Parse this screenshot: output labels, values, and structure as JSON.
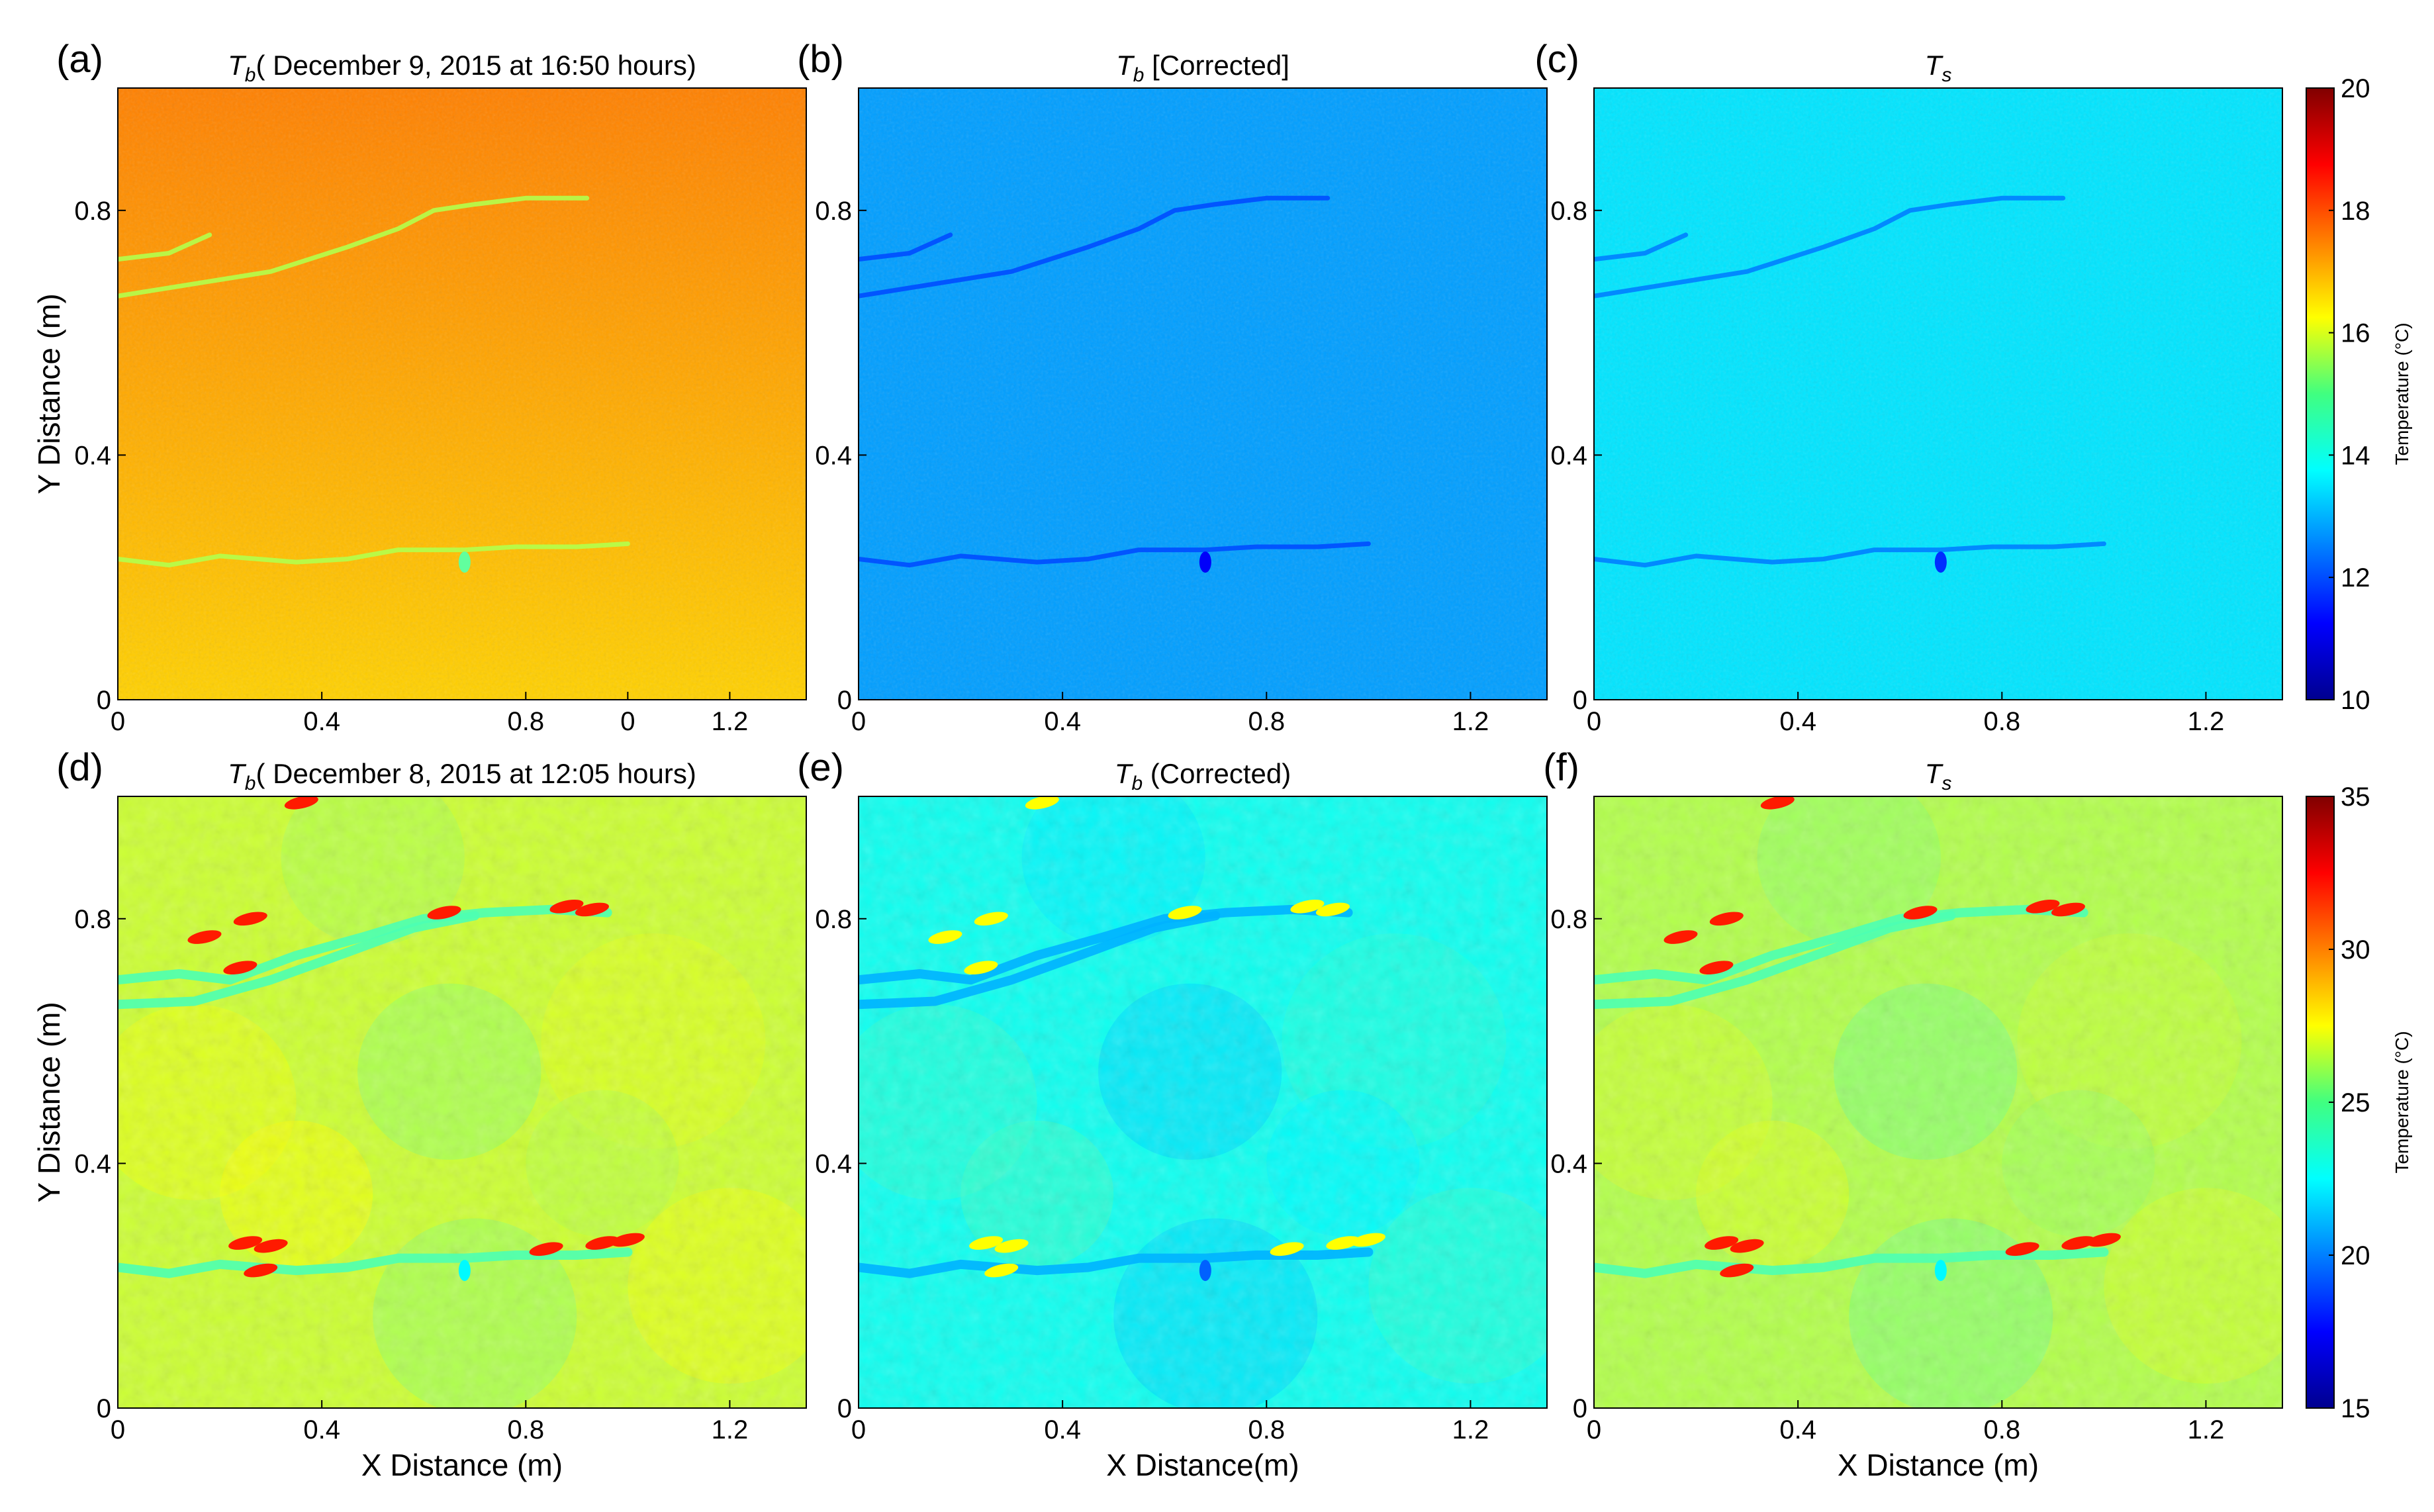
{
  "figure": {
    "panels": [
      {
        "id": "a",
        "label": "(a)",
        "title_main": "T",
        "title_sub": "b",
        "title_rest": "( December 9, 2015 at 16:50 hours)",
        "field": "Tb_dec9",
        "row": 0,
        "col": 0,
        "show_ylabel": true,
        "show_xlabel": false
      },
      {
        "id": "b",
        "label": "(b)",
        "title_main": "T",
        "title_sub": "b",
        "title_rest": " [Corrected]",
        "field": "Tbc_dec9",
        "row": 0,
        "col": 1,
        "show_ylabel": false,
        "show_xlabel": false
      },
      {
        "id": "c",
        "label": "(c)",
        "title_main": "T",
        "title_sub": "s",
        "title_rest": "",
        "field": "Ts_dec9",
        "row": 0,
        "col": 2,
        "show_ylabel": false,
        "show_xlabel": false
      },
      {
        "id": "d",
        "label": "(d)",
        "title_main": "T",
        "title_sub": "b",
        "title_rest": "( December 8, 2015 at 12:05 hours)",
        "field": "Tb_dec8",
        "row": 1,
        "col": 0,
        "show_ylabel": true,
        "show_xlabel": true
      },
      {
        "id": "e",
        "label": "(e)",
        "title_main": "T",
        "title_sub": "b",
        "title_rest": " (Corrected)",
        "field": "Tbc_dec8",
        "row": 1,
        "col": 1,
        "show_ylabel": false,
        "show_xlabel": true
      },
      {
        "id": "f",
        "label": "(f)",
        "title_main": "T",
        "title_sub": "s",
        "title_rest": "",
        "field": "Ts_dec8",
        "row": 1,
        "col": 2,
        "show_ylabel": false,
        "show_xlabel": true
      }
    ],
    "x_ticks_row1_panel_a": [
      "0",
      "0.4",
      "0.8",
      "0",
      "1.2"
    ],
    "x_ticks": [
      "0",
      "0.4",
      "0.8",
      "1.2"
    ],
    "y_ticks": [
      "0",
      "0.4",
      "0.8"
    ],
    "x_axis_labels": {
      "d": "X Distance (m)",
      "e": "X Distance(m)",
      "f": "X Distance (m)"
    },
    "y_axis_label": "Y Distance (m)",
    "colorbars": [
      {
        "row": 0,
        "min": 10,
        "max": 20,
        "ticks": [
          "10",
          "12",
          "14",
          "16",
          "18",
          "20"
        ],
        "label": "Temperature (°C)"
      },
      {
        "row": 1,
        "min": 15,
        "max": 35,
        "ticks": [
          "15",
          "20",
          "25",
          "30",
          "35"
        ],
        "label": "Temperature (°C)"
      }
    ],
    "colormap": "jet"
  },
  "chart_data": [
    {
      "type": "heatmap",
      "panel": "(a)",
      "title": "Tb( December 9, 2015 at 16:50 hours)",
      "xlim": [
        0,
        1.35
      ],
      "ylim": [
        0,
        1.0
      ],
      "ylabel": "Y Distance (m)",
      "color_range": [
        10,
        20
      ],
      "approx_values": {
        "top": 17.5,
        "bottom": 16.7,
        "crack_features": 15.5
      }
    },
    {
      "type": "heatmap",
      "panel": "(b)",
      "title": "Tb [Corrected]",
      "xlim": [
        0,
        1.35
      ],
      "ylim": [
        0,
        1.0
      ],
      "color_range": [
        10,
        20
      ],
      "approx_values": {
        "background": 12.8,
        "crack_features": 12.0
      }
    },
    {
      "type": "heatmap",
      "panel": "(c)",
      "title": "Ts",
      "xlim": [
        0,
        1.35
      ],
      "ylim": [
        0,
        1.0
      ],
      "color_range": [
        10,
        20
      ],
      "approx_values": {
        "background": 13.5,
        "crack_features": 12.5
      }
    },
    {
      "type": "heatmap",
      "panel": "(d)",
      "title": "Tb( December 8, 2015 at 12:05 hours)",
      "xlim": [
        0,
        1.35
      ],
      "ylim": [
        0,
        1.0
      ],
      "xlabel": "X Distance (m)",
      "ylabel": "Y Distance (m)",
      "color_range": [
        15,
        35
      ],
      "approx_values": {
        "background": 26.5,
        "crack_features": 24.0,
        "hot_spots": 32.0
      }
    },
    {
      "type": "heatmap",
      "panel": "(e)",
      "title": "Tb (Corrected)",
      "xlim": [
        0,
        1.35
      ],
      "ylim": [
        0,
        1.0
      ],
      "xlabel": "X Distance(m)",
      "color_range": [
        15,
        35
      ],
      "approx_values": {
        "background": 22.8,
        "crack_features": 21.0,
        "hot_spots": 27.5
      }
    },
    {
      "type": "heatmap",
      "panel": "(f)",
      "title": "Ts",
      "xlim": [
        0,
        1.35
      ],
      "ylim": [
        0,
        1.0
      ],
      "xlabel": "X Distance (m)",
      "color_range": [
        15,
        35
      ],
      "approx_values": {
        "background": 26.0,
        "crack_features": 24.0,
        "hot_spots": 32.0
      }
    }
  ]
}
